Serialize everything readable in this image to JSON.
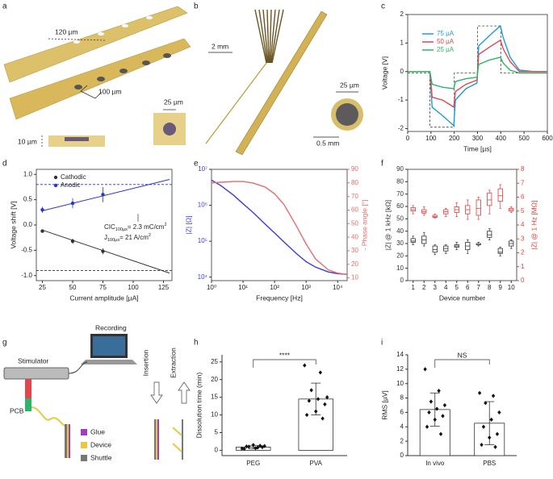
{
  "panel_labels": [
    "a",
    "b",
    "c",
    "d",
    "e",
    "f",
    "g",
    "h",
    "i"
  ],
  "illustration_a": {
    "labels": [
      "120 µm",
      "100 µm",
      "25 µm",
      "10 µm"
    ]
  },
  "illustration_b": {
    "labels": [
      "2 mm",
      "25 µm",
      "0.5 mm"
    ]
  },
  "illustration_g": {
    "labels": [
      "Stimulator",
      "Recording",
      "Insertion",
      "Extraction",
      "PCB",
      "Glue",
      "Device",
      "Shuttle"
    ]
  },
  "chart_data": [
    {
      "type": "line",
      "xlabel": "Time [µs]",
      "ylabel": "Voltage [V]",
      "x": [
        0,
        95,
        105,
        150,
        198,
        205,
        250,
        298,
        305,
        350,
        398,
        410,
        440,
        480,
        540,
        600
      ],
      "series": [
        {
          "name": "75 µA",
          "color": "#1f9ad6",
          "values": [
            0,
            0,
            -1.25,
            -1.55,
            -1.9,
            -1.0,
            -0.6,
            -0.4,
            0.9,
            1.25,
            1.6,
            1.2,
            0.5,
            0.05,
            0,
            0
          ]
        },
        {
          "name": "50 µA",
          "color": "#e0464c",
          "values": [
            0,
            0,
            -0.9,
            -1.0,
            -1.25,
            -0.7,
            -0.45,
            -0.3,
            0.6,
            0.85,
            1.1,
            0.8,
            0.35,
            0,
            0,
            0
          ]
        },
        {
          "name": "25 µA",
          "color": "#2cb56a",
          "values": [
            0,
            0,
            -0.45,
            -0.55,
            -0.6,
            -0.35,
            -0.25,
            -0.2,
            0.25,
            0.4,
            0.5,
            0.3,
            0.05,
            -0.05,
            -0.05,
            -0.05
          ]
        }
      ],
      "waveform": {
        "x": [
          0,
          95,
          95,
          200,
          200,
          300,
          300,
          400,
          400,
          600
        ],
        "values": [
          -0.05,
          -0.05,
          -1.95,
          -1.95,
          -0.05,
          -0.05,
          1.6,
          1.6,
          -0.05,
          -0.05
        ]
      },
      "xlim": [
        0,
        600
      ],
      "ylim": [
        -2.1,
        2
      ],
      "xticks": [
        0,
        100,
        200,
        300,
        400,
        500,
        600
      ],
      "yticks": [
        -2,
        -1,
        0,
        1,
        2
      ],
      "legend": "upper left"
    },
    {
      "type": "scatter",
      "xlabel": "Current amplitude [µA]",
      "ylabel": "Voltage shift [V]",
      "xlim": [
        20,
        132
      ],
      "ylim": [
        -1.1,
        1.1
      ],
      "xticks": [
        25,
        50,
        75,
        100,
        125
      ],
      "yticks": [
        {
          "value": -1,
          "label": "-1.0"
        },
        {
          "value": -0.5,
          "label": "-0.5"
        },
        {
          "value": 0,
          "label": "0.0"
        },
        {
          "value": 0.5,
          "label": "0.5"
        },
        {
          "value": 1,
          "label": "1.0"
        }
      ],
      "series": [
        {
          "name": "Cathodic",
          "color": "#333333",
          "x": [
            25,
            50,
            75
          ],
          "values": [
            -0.12,
            -0.32,
            -0.52
          ],
          "errors": [
            0.03,
            0.05,
            0.06
          ],
          "fit": {
            "x": [
              25,
              130
            ],
            "values": [
              -0.1,
              -0.95
            ]
          },
          "limit": -0.9
        },
        {
          "name": "Anodic",
          "color": "#2a35c9",
          "x": [
            25,
            50,
            75
          ],
          "values": [
            0.3,
            0.43,
            0.6
          ],
          "errors": [
            0.06,
            0.1,
            0.15
          ],
          "fit": {
            "x": [
              25,
              130
            ],
            "values": [
              0.28,
              0.9
            ]
          },
          "limit": 0.8
        }
      ],
      "annotations": [
        [
          "CIC",
          "100µs",
          "= 2.3 mC/cm",
          "2"
        ],
        [
          "J",
          "100µs",
          "= 21 A/cm",
          "2"
        ]
      ],
      "legend": "upper left"
    },
    {
      "type": "line",
      "xlabel": "Frequency [Hz]",
      "ylabel": "|Z| [Ω]",
      "y2label": "- Phase angle [°]",
      "xscale": "log",
      "yscale": "log",
      "x": [
        1,
        2,
        5,
        10,
        20,
        50,
        100,
        200,
        500,
        1000,
        2000,
        5000,
        10000,
        20000
      ],
      "series": [
        {
          "color": "#3b3bdc",
          "values": [
            5000000,
            3500000,
            1900000,
            1100000,
            650000,
            300000,
            170000,
            95000,
            45000,
            27000,
            19000,
            14000,
            12500,
            12000
          ]
        },
        {
          "color": "#e36d6d",
          "axis": "y2",
          "values": [
            80,
            80.5,
            81,
            81,
            80,
            77,
            72,
            64,
            48,
            35,
            24,
            16,
            13.5,
            12.5
          ]
        }
      ],
      "xlim": [
        1,
        20000
      ],
      "ylim": [
        8000,
        10000000
      ],
      "y2lim": [
        8,
        90
      ],
      "xticks": [
        {
          "value": 1,
          "label": "10⁰"
        },
        {
          "value": 10,
          "label": "10¹"
        },
        {
          "value": 100,
          "label": "10²"
        },
        {
          "value": 1000,
          "label": "10³"
        },
        {
          "value": 10000,
          "label": "10⁴"
        }
      ],
      "yticks": [
        {
          "value": 10000,
          "label": "10⁴"
        },
        {
          "value": 100000,
          "label": "10⁵"
        },
        {
          "value": 1000000,
          "label": "10⁶"
        },
        {
          "value": 10000000,
          "label": "10⁷"
        }
      ],
      "y2ticks": [
        10,
        20,
        30,
        40,
        50,
        60,
        70,
        80,
        90
      ]
    },
    {
      "type": "box",
      "xlabel": "Device number",
      "ylabel": "|Z| @ 1 kHz [kΩ]",
      "y2label": "|Z| @ 1 Hz [MΩ]",
      "categories": [
        "1",
        "2",
        "3",
        "4",
        "5",
        "6",
        "7",
        "8",
        "9",
        "10"
      ],
      "series": [
        {
          "color": "#333333",
          "boxes": [
            [
              29,
              31,
              32,
              34,
              36
            ],
            [
              28,
              30,
              33,
              36,
              39
            ],
            [
              21,
              23,
              25,
              28,
              29
            ],
            [
              22,
              24,
              26,
              28,
              29
            ],
            [
              25,
              27,
              28,
              29,
              31
            ],
            [
              22,
              25,
              28,
              31,
              33
            ],
            [
              28,
              29,
              29,
              30,
              31
            ],
            [
              33,
              35,
              37,
              40,
              42
            ],
            [
              20,
              22,
              23,
              26,
              27
            ],
            [
              26,
              28,
              30,
              32,
              33
            ]
          ]
        },
        {
          "color": "#e03c3c",
          "axis": "y2",
          "boxes": [
            [
              4.8,
              5.0,
              5.1,
              5.25,
              5.4
            ],
            [
              4.7,
              4.85,
              4.95,
              5.1,
              5.3
            ],
            [
              4.5,
              4.55,
              4.6,
              4.7,
              4.8
            ],
            [
              4.6,
              4.8,
              4.95,
              5.1,
              5.2
            ],
            [
              4.6,
              4.9,
              5.1,
              5.3,
              5.6
            ],
            [
              4.4,
              4.8,
              5.1,
              5.4,
              5.8
            ],
            [
              4.4,
              4.7,
              5.2,
              5.8,
              6.0
            ],
            [
              4.8,
              5.4,
              5.8,
              6.3,
              6.5
            ],
            [
              5.2,
              5.7,
              6.1,
              6.6,
              6.9
            ],
            [
              4.9,
              5.0,
              5.1,
              5.2,
              5.3
            ]
          ]
        }
      ],
      "ylim": [
        0,
        90
      ],
      "yticks": [
        0,
        10,
        20,
        30,
        40,
        50,
        60,
        70,
        80,
        90
      ],
      "y2lim": [
        0,
        8
      ],
      "y2ticks": [
        0,
        1,
        2,
        3,
        4,
        5,
        6,
        7,
        8
      ]
    },
    {
      "type": "bar",
      "ylabel": "Dissolution time (min)",
      "categories": [
        "PEG",
        "PVA"
      ],
      "values": [
        0.9,
        14.5
      ],
      "errors": [
        0.5,
        4.5
      ],
      "points": [
        [
          0.5,
          0.8,
          1.0,
          1.2,
          0.6,
          1.1,
          0.9,
          1.5,
          0.4,
          1.3
        ],
        [
          24,
          22,
          17,
          15,
          14.5,
          14,
          13,
          11,
          10,
          9
        ]
      ],
      "ylim": [
        -1.5,
        27
      ],
      "yticks": [
        0,
        5,
        10,
        15,
        20,
        25
      ],
      "significance": "****"
    },
    {
      "type": "bar",
      "ylabel": "RMS [µV]",
      "categories": [
        "In vivo",
        "PBS"
      ],
      "values": [
        6.4,
        4.5
      ],
      "errors": [
        2.3,
        3.0
      ],
      "points": [
        [
          12,
          9,
          7.5,
          7,
          6.5,
          6,
          5.5,
          5,
          4,
          3
        ],
        [
          8.7,
          8.3,
          7.3,
          6,
          5,
          4,
          3,
          2.5,
          1.5,
          1.2
        ]
      ],
      "ylim": [
        0,
        14
      ],
      "yticks": [
        0,
        2,
        4,
        6,
        8,
        10,
        12,
        14
      ],
      "significance": "NS"
    }
  ]
}
